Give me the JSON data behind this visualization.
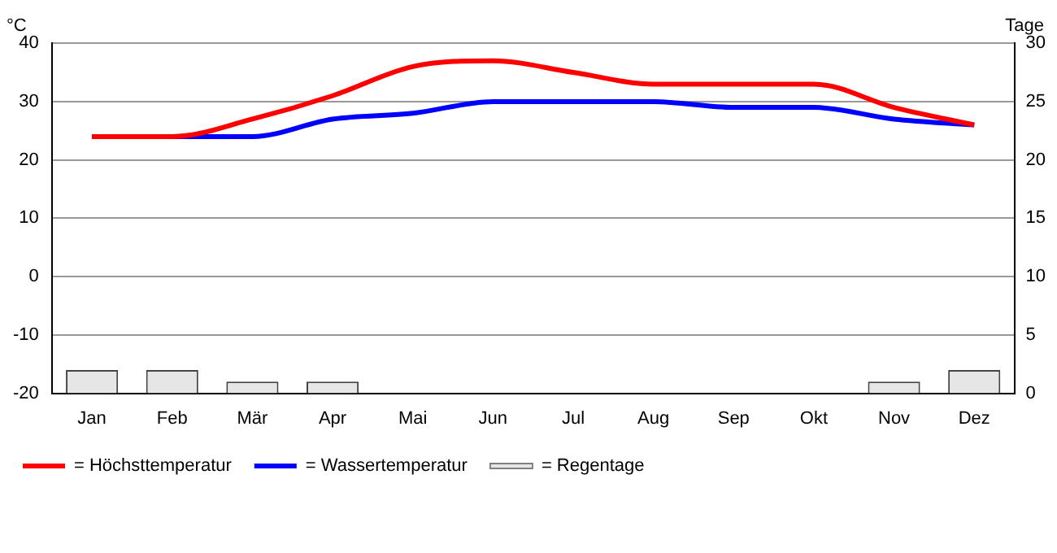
{
  "chart_data": {
    "type": "line",
    "ylabel": "°C",
    "y2label": "Tage",
    "categories": [
      "Jan",
      "Feb",
      "Mär",
      "Apr",
      "Mai",
      "Jun",
      "Jul",
      "Aug",
      "Sep",
      "Okt",
      "Nov",
      "Dez"
    ],
    "series": [
      {
        "name": "= Höchsttemperatur",
        "color": "#ff0000",
        "values": [
          24,
          24,
          27,
          31,
          36,
          37,
          35,
          33,
          33,
          33,
          29,
          26
        ]
      },
      {
        "name": "= Wassertemperatur",
        "color": "#0000ff",
        "values": [
          24,
          24,
          24,
          27,
          28,
          30,
          30,
          30,
          29,
          29,
          27,
          26
        ]
      },
      {
        "name": "= Regentage",
        "type": "bar",
        "axis": "y2",
        "color": "#e6e6e6",
        "values": [
          2,
          2,
          1,
          1,
          0,
          0,
          0,
          0,
          0,
          0,
          1,
          2
        ]
      }
    ],
    "ylim": [
      -20,
      40
    ],
    "yticks": [
      -20,
      -10,
      0,
      10,
      20,
      30,
      40
    ],
    "y2lim": [
      0,
      30
    ],
    "y2ticks": [
      0,
      5,
      10,
      15,
      20,
      25,
      30
    ],
    "grid": "y",
    "legend": "bottom",
    "marker": "none",
    "line_style": "solid"
  }
}
